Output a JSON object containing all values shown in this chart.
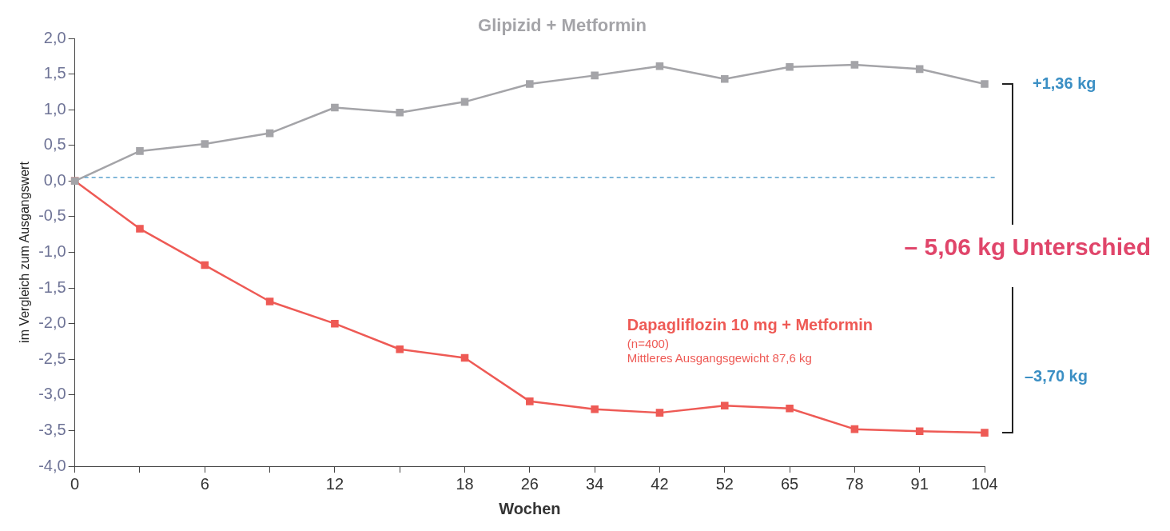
{
  "chart_data": {
    "type": "line",
    "xlabel": "Wochen",
    "ylabel": "im Vergleich zum Ausgangswert",
    "categories": [
      "0",
      null,
      "6",
      null,
      "12",
      null,
      "18",
      "26",
      "34",
      "42",
      "52",
      "65",
      "78",
      "91",
      "104"
    ],
    "series": [
      {
        "name": "Glipizid + Metformin",
        "color": "#a4a4a8",
        "values": [
          0,
          0.42,
          0.52,
          0.67,
          1.03,
          0.96,
          1.11,
          1.36,
          1.48,
          1.61,
          1.43,
          1.6,
          1.63,
          1.57,
          1.36
        ]
      },
      {
        "name": "Dapagliflozin 10 mg + Metformin",
        "color": "#ee5a55",
        "values": [
          0,
          -0.67,
          -1.18,
          -1.69,
          -2.0,
          -2.36,
          -2.48,
          -3.09,
          -3.2,
          -3.25,
          -3.15,
          -3.19,
          -3.48,
          -3.51,
          -3.53
        ]
      }
    ],
    "ylim": [
      -4,
      2
    ],
    "yticks": [
      {
        "value": -4,
        "label": "-4,0"
      },
      {
        "value": -3.5,
        "label": "-3,5"
      },
      {
        "value": -3,
        "label": "-3,0"
      },
      {
        "value": -2.5,
        "label": "-2,5"
      },
      {
        "value": -2,
        "label": "-2,0"
      },
      {
        "value": -1.5,
        "label": "-1,5"
      },
      {
        "value": -1,
        "label": "-1,0"
      },
      {
        "value": -0.5,
        "label": "-0,5"
      },
      {
        "value": 0,
        "label": "0,0"
      },
      {
        "value": 0.5,
        "label": "0,5"
      },
      {
        "value": 1,
        "label": "1,0"
      },
      {
        "value": 1.5,
        "label": "1,5"
      },
      {
        "value": 2,
        "label": "2,0"
      }
    ],
    "ref_lines": [
      {
        "axis": "y",
        "value": 0.05,
        "color": "#3b8fc4",
        "line_style": "dashed"
      }
    ],
    "annotations": [
      "+1,36 kg",
      "– 5,06 kg Unterschied",
      "–3,70 kg",
      "(n=400)",
      "Mittleres Ausgangsgewicht 87,6 kg"
    ],
    "marker": "square",
    "line_style": "solid",
    "legend": false
  }
}
